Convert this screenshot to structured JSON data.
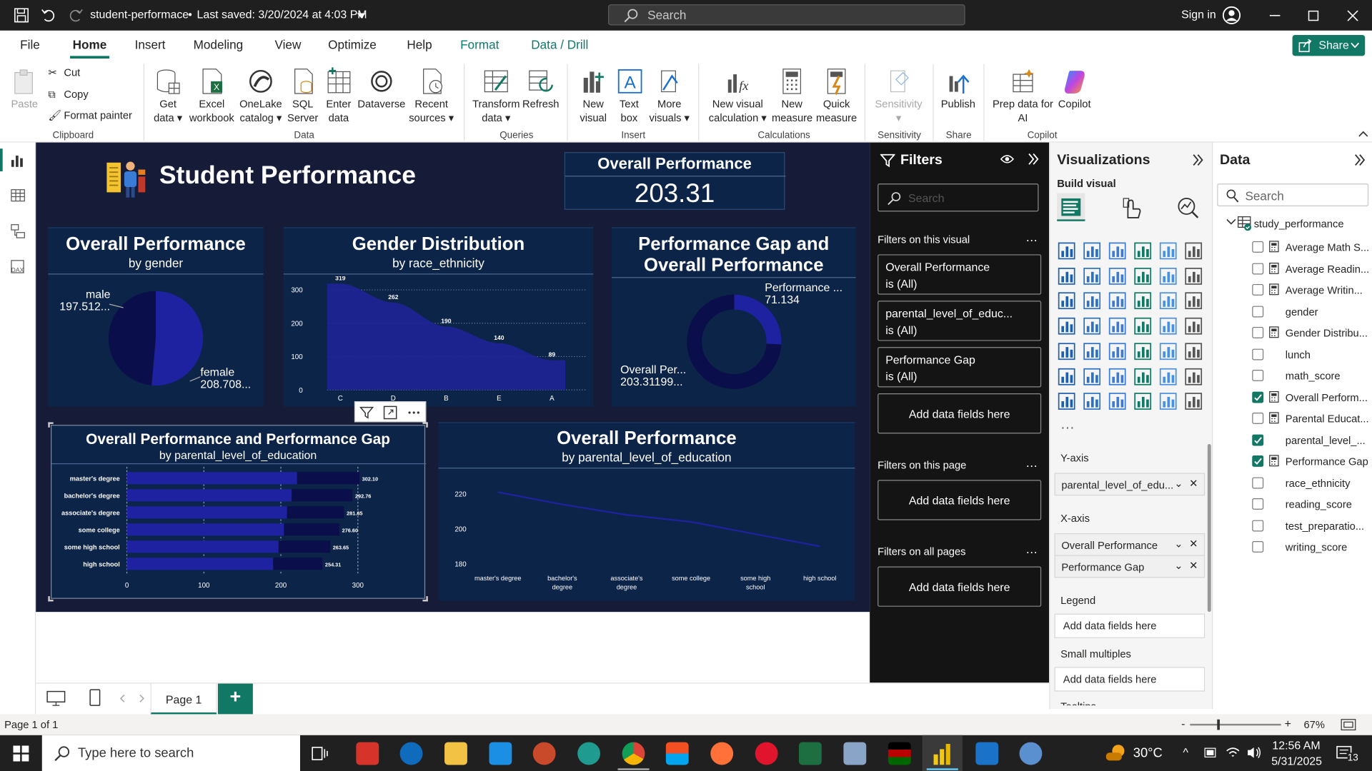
{
  "titlebar": {
    "file_name": "student-performace",
    "saved": "Last saved: 3/20/2024 at 4:03 PM",
    "search_placeholder": "Search",
    "sign_in": "Sign in"
  },
  "menu": {
    "items": [
      "File",
      "Home",
      "Insert",
      "Modeling",
      "View",
      "Optimize",
      "Help",
      "Format",
      "Data / Drill"
    ],
    "share": "Share"
  },
  "ribbon": {
    "clipboard": {
      "paste": "Paste",
      "cut": "Cut",
      "copy": "Copy",
      "format_painter": "Format painter",
      "group": "Clipboard"
    },
    "data": {
      "get_data": "Get data",
      "excel": "Excel workbook",
      "onelake": "OneLake catalog",
      "sql": "SQL Server",
      "enter": "Enter data",
      "dataverse": "Dataverse",
      "recent": "Recent sources",
      "group": "Data"
    },
    "queries": {
      "transform": "Transform data",
      "refresh": "Refresh",
      "group": "Queries"
    },
    "insert": {
      "new_visual": "New visual",
      "text_box": "Text box",
      "more_visuals": "More visuals",
      "group": "Insert"
    },
    "calculations": {
      "new_visual_calc": "New visual calculation",
      "new_measure": "New measure",
      "quick_measure": "Quick measure",
      "group": "Calculations"
    },
    "sensitivity": {
      "label": "Sensitivity",
      "group": "Sensitivity"
    },
    "share": {
      "publish": "Publish",
      "group": "Share"
    },
    "copilot": {
      "prep": "Prep data for AI",
      "copilot": "Copilot",
      "group": "Copilot"
    }
  },
  "report": {
    "title": "Student Performance",
    "kpi": {
      "label": "Overall Performance",
      "value": "203.31"
    },
    "pie": {
      "title": "Overall Performance",
      "subtitle": "by gender",
      "male_label": "male",
      "male_value": "197.512...",
      "female_label": "female",
      "female_value": "208.708..."
    },
    "area": {
      "title": "Gender Distribution",
      "subtitle": "by race_ethnicity"
    },
    "donut": {
      "title_line1": "Performance Gap and",
      "title_line2": "Overall Performance",
      "gap_label": "Performance ...",
      "gap_value": "71.134",
      "overall_label": "Overall Per...",
      "overall_value": "203.31199..."
    },
    "bar": {
      "title": "Overall Performance and Performance Gap",
      "subtitle": "by parental_level_of_education"
    },
    "line": {
      "title": "Overall Performance",
      "subtitle": "by parental_level_of_education"
    }
  },
  "chart_data": [
    {
      "type": "pie",
      "title": "Overall Performance",
      "subtitle": "by gender",
      "categories": [
        "male",
        "female"
      ],
      "values": [
        197.512,
        208.708
      ],
      "colors": [
        "#0a0e4a",
        "#1e22a0"
      ]
    },
    {
      "type": "area",
      "title": "Gender Distribution",
      "subtitle": "by race_ethnicity",
      "categories": [
        "C",
        "D",
        "B",
        "E",
        "A"
      ],
      "values": [
        319,
        262,
        190,
        140,
        89
      ],
      "ylim": [
        0,
        320
      ],
      "yticks": [
        0,
        100,
        200,
        300
      ],
      "color": "#1f2396"
    },
    {
      "type": "pie",
      "title": "Performance Gap and Overall Performance",
      "categories": [
        "Performance Gap",
        "Overall Performance"
      ],
      "values": [
        71.134,
        203.31199
      ],
      "donut": true,
      "colors": [
        "#1e22a0",
        "#0a0e4a"
      ]
    },
    {
      "type": "bar",
      "orientation": "horizontal",
      "stacked": true,
      "title": "Overall Performance and Performance Gap",
      "subtitle": "by parental_level_of_education",
      "categories": [
        "master's degree",
        "bachelor's degree",
        "associate's degree",
        "some college",
        "some high school",
        "high school"
      ],
      "series": [
        {
          "values": [
            221,
            214,
            208,
            204,
            197,
            190
          ],
          "color": "#1e22a0"
        },
        {
          "values": [
            81,
            79,
            74,
            72,
            67,
            64
          ],
          "color": "#0a0e4a"
        }
      ],
      "totals": [
        "302.10",
        "292.76",
        "281.65",
        "276.60",
        "263.65",
        "254.31"
      ],
      "xlim": [
        0,
        300
      ],
      "xticks": [
        0,
        100,
        200,
        300
      ]
    },
    {
      "type": "line",
      "title": "Overall Performance",
      "subtitle": "by parental_level_of_education",
      "categories": [
        "master's degree",
        "bachelor's degree",
        "associate's degree",
        "some college",
        "some high school",
        "high school"
      ],
      "values": [
        221,
        214,
        208,
        204,
        197,
        190
      ],
      "ylim": [
        180,
        225
      ],
      "yticks": [
        180,
        200,
        220
      ],
      "color": "#1e22a0"
    }
  ],
  "filters": {
    "title": "Filters",
    "search_placeholder": "Search",
    "on_visual": "Filters on this visual",
    "cards": [
      {
        "name": "Overall Performance",
        "state": "is (All)"
      },
      {
        "name": "parental_level_of_educ...",
        "state": "is (All)"
      },
      {
        "name": "Performance Gap",
        "state": "is (All)"
      }
    ],
    "add": "Add data fields here",
    "on_page": "Filters on this page",
    "on_all": "Filters on all pages"
  },
  "visualizations": {
    "title": "Visualizations",
    "build": "Build visual",
    "yaxis": "Y-axis",
    "yaxis_field": "parental_level_of_edu...",
    "xaxis": "X-axis",
    "xaxis_fields": [
      "Overall Performance",
      "Performance Gap"
    ],
    "legend": "Legend",
    "small_multiples": "Small multiples",
    "add": "Add data fields here",
    "tooltips": "Tooltips"
  },
  "data": {
    "title": "Data",
    "search_placeholder": "Search",
    "table": "study_performance",
    "fields": [
      {
        "name": "Average Math S...",
        "calc": true,
        "checked": false
      },
      {
        "name": "Average Readin...",
        "calc": true,
        "checked": false
      },
      {
        "name": "Average Writin...",
        "calc": true,
        "checked": false
      },
      {
        "name": "gender",
        "calc": false,
        "checked": false
      },
      {
        "name": "Gender Distribu...",
        "calc": true,
        "checked": false
      },
      {
        "name": "lunch",
        "calc": false,
        "checked": false
      },
      {
        "name": "math_score",
        "calc": false,
        "checked": false
      },
      {
        "name": "Overall Perform...",
        "calc": true,
        "checked": true
      },
      {
        "name": "Parental Educat...",
        "calc": true,
        "checked": false
      },
      {
        "name": "parental_level_...",
        "calc": false,
        "checked": true
      },
      {
        "name": "Performance Gap",
        "calc": true,
        "checked": true
      },
      {
        "name": "race_ethnicity",
        "calc": false,
        "checked": false
      },
      {
        "name": "reading_score",
        "calc": false,
        "checked": false
      },
      {
        "name": "test_preparatio...",
        "calc": false,
        "checked": false
      },
      {
        "name": "writing_score",
        "calc": false,
        "checked": false
      }
    ]
  },
  "pages": {
    "tab": "Page 1",
    "add": "+"
  },
  "status": {
    "page": "Page 1 of 1",
    "zoom": "67%"
  },
  "taskbar": {
    "search": "Type here to search",
    "temp": "30°C",
    "time": "12:56 AM",
    "date": "5/31/2025",
    "badge": "13"
  }
}
